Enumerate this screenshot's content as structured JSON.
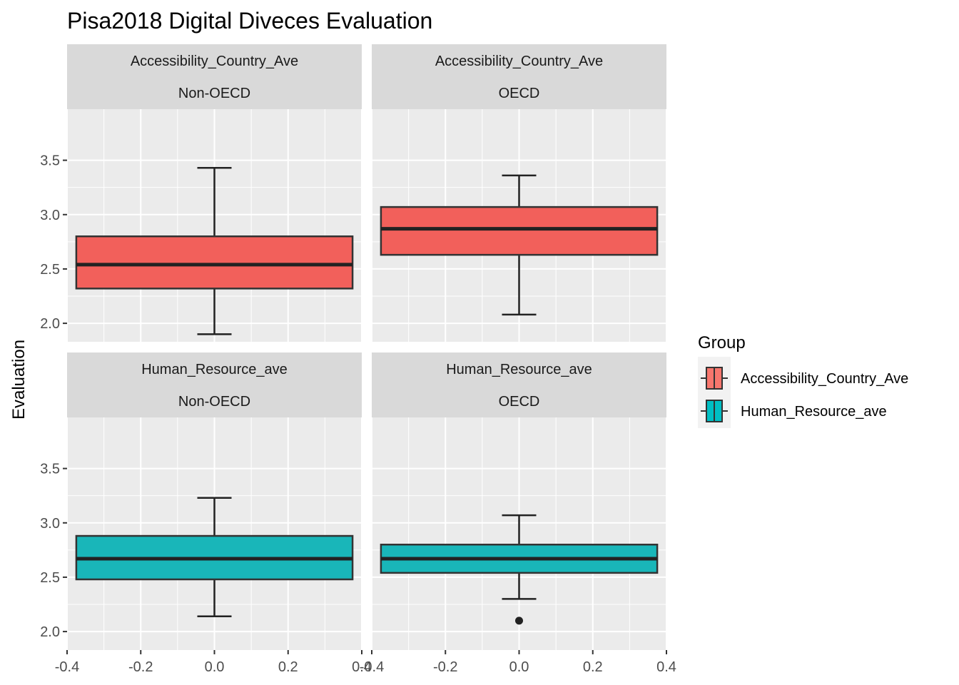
{
  "chart_data": {
    "type": "boxplot",
    "title": "Pisa2018 Digital Diveces Evaluation",
    "ylabel": "Evaluation",
    "xlabel": "",
    "xlim": [
      -0.4,
      0.4
    ],
    "ylim": [
      1.83,
      3.97
    ],
    "x_ticks": [
      -0.4,
      -0.2,
      0.0,
      0.2,
      0.4
    ],
    "x_tick_labels": [
      "-0.4",
      "-0.2",
      "0.0",
      "0.2",
      "0.4"
    ],
    "y_ticks": [
      2.0,
      2.5,
      3.0,
      3.5
    ],
    "y_tick_labels": [
      "2.0",
      "2.5",
      "3.0",
      "3.5"
    ],
    "grid": true,
    "legend": {
      "title": "Group",
      "position": "right",
      "entries": [
        {
          "label": "Accessibility_Country_Ave",
          "color": "#F8766D"
        },
        {
          "label": "Human_Resource_ave",
          "color": "#00BFC4"
        }
      ]
    },
    "panels": [
      {
        "strip": [
          "Accessibility_Country_Ave",
          "Non-OECD"
        ],
        "group": "Accessibility_Country_Ave",
        "color": "#F2605B",
        "box": {
          "whisker_low": 1.9,
          "q1": 2.32,
          "median": 2.54,
          "q3": 2.8,
          "whisker_high": 3.43
        },
        "outliers": []
      },
      {
        "strip": [
          "Accessibility_Country_Ave",
          "OECD"
        ],
        "group": "Accessibility_Country_Ave",
        "color": "#F2605B",
        "box": {
          "whisker_low": 2.08,
          "q1": 2.63,
          "median": 2.87,
          "q3": 3.07,
          "whisker_high": 3.36
        },
        "outliers": []
      },
      {
        "strip": [
          "Human_Resource_ave",
          "Non-OECD"
        ],
        "group": "Human_Resource_ave",
        "color": "#19B6B9",
        "box": {
          "whisker_low": 2.14,
          "q1": 2.48,
          "median": 2.67,
          "q3": 2.88,
          "whisker_high": 3.23
        },
        "outliers": []
      },
      {
        "strip": [
          "Human_Resource_ave",
          "OECD"
        ],
        "group": "Human_Resource_ave",
        "color": "#19B6B9",
        "box": {
          "whisker_low": 2.3,
          "q1": 2.54,
          "median": 2.67,
          "q3": 2.8,
          "whisker_high": 3.07
        },
        "outliers": [
          2.1
        ]
      }
    ]
  }
}
